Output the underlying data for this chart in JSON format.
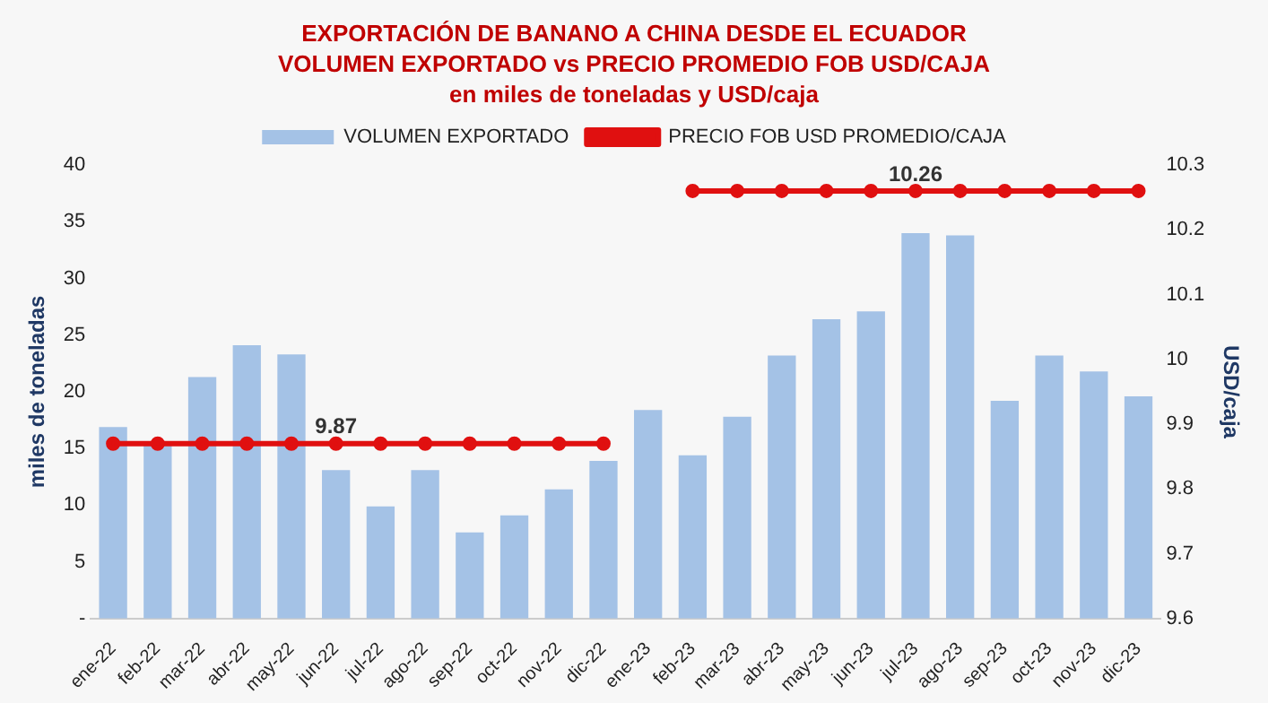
{
  "chart_data": {
    "type": "bar",
    "title": "EXPORTACIÓN DE BANANO A CHINA DESDE EL ECUADOR",
    "subtitle": "VOLUMEN EXPORTADO vs PRECIO PROMEDIO FOB USD/CAJA\nen miles de toneladas y USD/caja",
    "categories": [
      "ene-22",
      "feb-22",
      "mar-22",
      "abr-22",
      "may-22",
      "jun-22",
      "jul-22",
      "ago-22",
      "sep-22",
      "oct-22",
      "nov-22",
      "dic-22",
      "ene-23",
      "feb-23",
      "mar-23",
      "abr-23",
      "may-23",
      "jun-23",
      "jul-23",
      "ago-23",
      "sep-23",
      "oct-23",
      "nov-23",
      "dic-23"
    ],
    "series": [
      {
        "name": "VOLUMEN EXPORTADO",
        "color": "#a4c2e6",
        "values": [
          16.9,
          15.3,
          21.3,
          24.1,
          23.3,
          13.1,
          9.9,
          13.1,
          7.6,
          9.1,
          11.4,
          13.9,
          18.4,
          14.4,
          17.8,
          23.2,
          26.4,
          27.1,
          34.0,
          33.8,
          19.2,
          23.2,
          21.8,
          19.6
        ]
      },
      {
        "name": "PRECIO FOB USD PROMEDIO/CAJA",
        "type": "line",
        "axis": "y2",
        "color": "#e01010",
        "marker": "circle",
        "values": [
          9.87,
          9.87,
          9.87,
          9.87,
          9.87,
          9.87,
          9.87,
          9.87,
          9.87,
          9.87,
          9.87,
          9.87,
          null,
          10.26,
          10.26,
          10.26,
          10.26,
          10.26,
          10.26,
          10.26,
          10.26,
          10.26,
          10.26,
          10.26
        ],
        "value_labels": [
          null,
          null,
          null,
          null,
          null,
          "9.87",
          null,
          null,
          null,
          null,
          null,
          null,
          null,
          null,
          null,
          null,
          null,
          null,
          "10.26",
          null,
          null,
          null,
          null,
          null
        ]
      }
    ],
    "ylabel": "miles de toneladas",
    "y2label": "USD/caja",
    "ylim": [
      0,
      40
    ],
    "yticks": [
      {
        "value": 0,
        "label": "-"
      },
      5,
      10,
      15,
      20,
      25,
      30,
      35,
      40
    ],
    "y2lim": [
      9.6,
      10.3
    ],
    "y2ticks": [
      9.6,
      9.7,
      9.8,
      9.9,
      10,
      10.1,
      10.2,
      10.3
    ],
    "legend": "top",
    "grid": false
  }
}
